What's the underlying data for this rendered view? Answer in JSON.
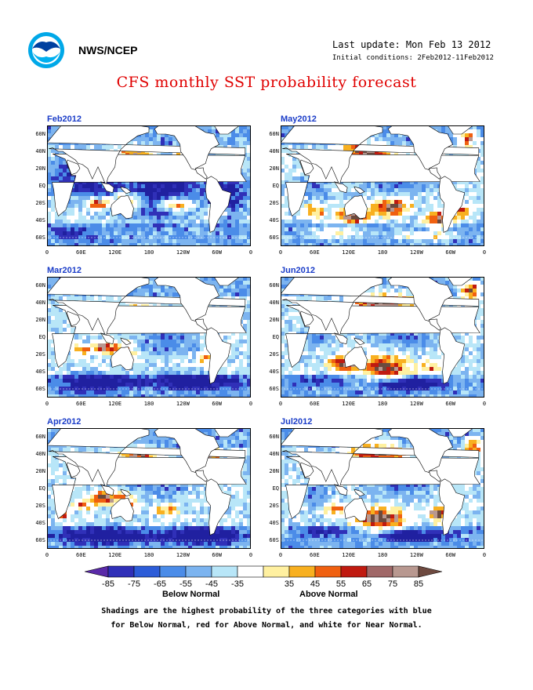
{
  "header": {
    "agency": "NWS/NCEP",
    "last_update": "Last update: Mon Feb 13 2012",
    "initial_conditions": "Initial conditions: 2Feb2012-11Feb2012",
    "title": "CFS monthly SST probability forecast"
  },
  "map_axes": {
    "lat_labels": [
      "60N",
      "40N",
      "20N",
      "EQ",
      "20S",
      "40S",
      "60S"
    ],
    "lon_labels": [
      "0",
      "60E",
      "120E",
      "180",
      "120W",
      "60W",
      "0"
    ]
  },
  "panels": [
    {
      "label": "Feb2012",
      "column": "left",
      "row": 0
    },
    {
      "label": "Mar2012",
      "column": "left",
      "row": 1
    },
    {
      "label": "Apr2012",
      "column": "left",
      "row": 2
    },
    {
      "label": "May2012",
      "column": "right",
      "row": 0
    },
    {
      "label": "Jun2012",
      "column": "right",
      "row": 1
    },
    {
      "label": "Jul2012",
      "column": "right",
      "row": 2
    }
  ],
  "colorbar": {
    "labels": [
      "-85",
      "-75",
      "-65",
      "-55",
      "-45",
      "-35",
      "35",
      "45",
      "55",
      "65",
      "75",
      "85"
    ],
    "colors": [
      "#3030b8",
      "#2c5cd8",
      "#4b8ce8",
      "#7cb4f0",
      "#b8e6f8",
      "#ffffff",
      "#fff0a0",
      "#f8b020",
      "#f06010",
      "#c01a10",
      "#a06868",
      "#b89890"
    ],
    "end_left_color": "#5a2aa8",
    "end_right_color": "#6e4a40",
    "below_label": "Below Normal",
    "above_label": "Above Normal"
  },
  "notes": [
    "Shadings are the highest probability of the three categories with blue",
    "for Below Normal, red for Above Normal, and white for Near Normal."
  ],
  "colors": {
    "title": "#e00000",
    "panel_label": "#1a3cc8",
    "deep_below": "#2020a0",
    "above_core": "#6b4a3e"
  }
}
